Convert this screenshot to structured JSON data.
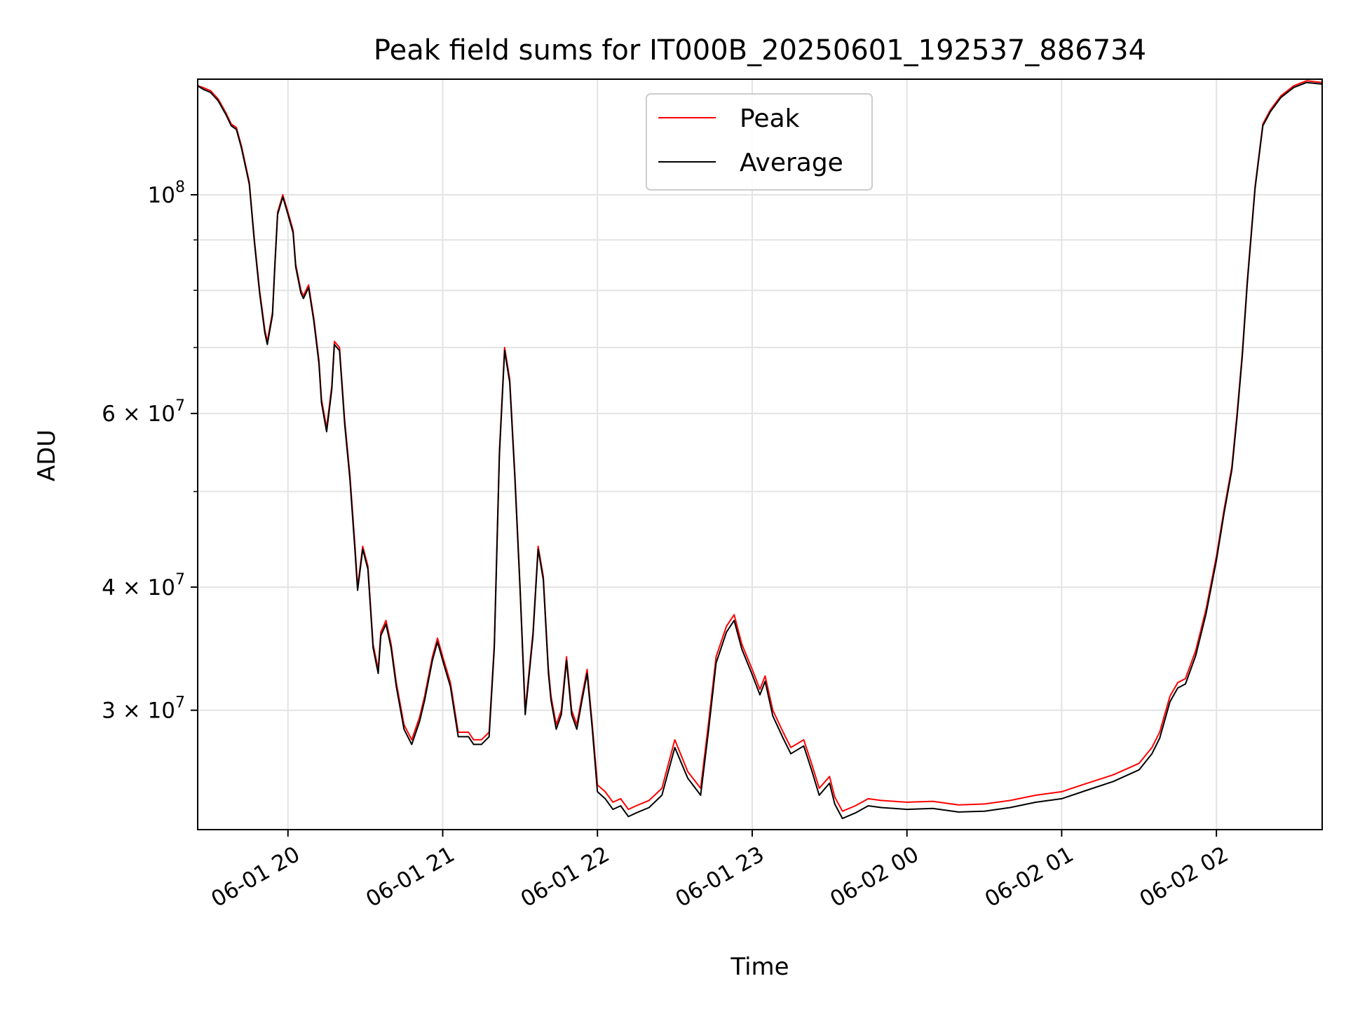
{
  "chart_data": {
    "type": "line",
    "title": "Peak field sums for IT000B_20250601_192537_886734",
    "xlabel": "Time",
    "ylabel": "ADU",
    "yscale": "log",
    "xlim": [
      "2025-06-01 19:25",
      "2025-06-02 02:41"
    ],
    "ylim": [
      22700000,
      131000000
    ],
    "grid": true,
    "legend": "top-center",
    "x_ticks": [
      {
        "value": "2025-06-01 20:00",
        "label": "06-01 20"
      },
      {
        "value": "2025-06-01 21:00",
        "label": "06-01 21"
      },
      {
        "value": "2025-06-01 22:00",
        "label": "06-01 22"
      },
      {
        "value": "2025-06-01 23:00",
        "label": "06-01 23"
      },
      {
        "value": "2025-06-02 00:00",
        "label": "06-02 00"
      },
      {
        "value": "2025-06-02 01:00",
        "label": "06-02 01"
      },
      {
        "value": "2025-06-02 02:00",
        "label": "06-02 02"
      }
    ],
    "y_ticks": [
      {
        "value": 100000000,
        "base": "10",
        "exp": "8"
      },
      {
        "value": 60000000,
        "base": "6 × 10",
        "exp": "7"
      },
      {
        "value": 40000000,
        "base": "4 × 10",
        "exp": "7"
      },
      {
        "value": 30000000,
        "base": "3 × 10",
        "exp": "7"
      }
    ],
    "y_minor_ticks": [
      50000000,
      70000000,
      80000000,
      90000000
    ],
    "x": [
      "2025-06-01 19:25",
      "2025-06-01 19:27",
      "2025-06-01 19:30",
      "2025-06-01 19:33",
      "2025-06-01 19:36",
      "2025-06-01 19:38",
      "2025-06-01 19:40",
      "2025-06-01 19:42",
      "2025-06-01 19:45",
      "2025-06-01 19:47",
      "2025-06-01 19:49",
      "2025-06-01 19:51",
      "2025-06-01 19:52",
      "2025-06-01 19:54",
      "2025-06-01 19:55",
      "2025-06-01 19:56",
      "2025-06-01 19:58",
      "2025-06-01 20:00",
      "2025-06-01 20:02",
      "2025-06-01 20:03",
      "2025-06-01 20:05",
      "2025-06-01 20:06",
      "2025-06-01 20:08",
      "2025-06-01 20:10",
      "2025-06-01 20:12",
      "2025-06-01 20:13",
      "2025-06-01 20:15",
      "2025-06-01 20:17",
      "2025-06-01 20:18",
      "2025-06-01 20:20",
      "2025-06-01 20:22",
      "2025-06-01 20:24",
      "2025-06-01 20:26",
      "2025-06-01 20:27",
      "2025-06-01 20:29",
      "2025-06-01 20:31",
      "2025-06-01 20:33",
      "2025-06-01 20:35",
      "2025-06-01 20:36",
      "2025-06-01 20:38",
      "2025-06-01 20:40",
      "2025-06-01 20:42",
      "2025-06-01 20:45",
      "2025-06-01 20:48",
      "2025-06-01 20:51",
      "2025-06-01 20:53",
      "2025-06-01 20:56",
      "2025-06-01 20:58",
      "2025-06-01 21:00",
      "2025-06-01 21:03",
      "2025-06-01 21:06",
      "2025-06-01 21:08",
      "2025-06-01 21:10",
      "2025-06-01 21:12",
      "2025-06-01 21:15",
      "2025-06-01 21:18",
      "2025-06-01 21:20",
      "2025-06-01 21:22",
      "2025-06-01 21:24",
      "2025-06-01 21:26",
      "2025-06-01 21:28",
      "2025-06-01 21:30",
      "2025-06-01 21:32",
      "2025-06-01 21:35",
      "2025-06-01 21:37",
      "2025-06-01 21:39",
      "2025-06-01 21:41",
      "2025-06-01 21:42",
      "2025-06-01 21:44",
      "2025-06-01 21:46",
      "2025-06-01 21:48",
      "2025-06-01 21:50",
      "2025-06-01 21:52",
      "2025-06-01 21:54",
      "2025-06-01 21:56",
      "2025-06-01 21:58",
      "2025-06-01 22:00",
      "2025-06-01 22:03",
      "2025-06-01 22:06",
      "2025-06-01 22:09",
      "2025-06-01 22:12",
      "2025-06-01 22:15",
      "2025-06-01 22:20",
      "2025-06-01 22:25",
      "2025-06-01 22:30",
      "2025-06-01 22:35",
      "2025-06-01 22:40",
      "2025-06-01 22:43",
      "2025-06-01 22:46",
      "2025-06-01 22:50",
      "2025-06-01 22:53",
      "2025-06-01 22:56",
      "2025-06-01 23:00",
      "2025-06-01 23:03",
      "2025-06-01 23:05",
      "2025-06-01 23:08",
      "2025-06-01 23:12",
      "2025-06-01 23:15",
      "2025-06-01 23:20",
      "2025-06-01 23:23",
      "2025-06-01 23:26",
      "2025-06-01 23:30",
      "2025-06-01 23:32",
      "2025-06-01 23:35",
      "2025-06-01 23:40",
      "2025-06-01 23:45",
      "2025-06-01 23:50",
      "2025-06-02 00:00",
      "2025-06-02 00:10",
      "2025-06-02 00:20",
      "2025-06-02 00:30",
      "2025-06-02 00:40",
      "2025-06-02 00:50",
      "2025-06-02 01:00",
      "2025-06-02 01:10",
      "2025-06-02 01:20",
      "2025-06-02 01:30",
      "2025-06-02 01:35",
      "2025-06-02 01:38",
      "2025-06-02 01:42",
      "2025-06-02 01:45",
      "2025-06-02 01:48",
      "2025-06-02 01:52",
      "2025-06-02 01:56",
      "2025-06-02 02:00",
      "2025-06-02 02:03",
      "2025-06-02 02:06",
      "2025-06-02 02:08",
      "2025-06-02 02:10",
      "2025-06-02 02:12",
      "2025-06-02 02:15",
      "2025-06-02 02:18",
      "2025-06-02 02:21",
      "2025-06-02 02:25",
      "2025-06-02 02:30",
      "2025-06-02 02:35",
      "2025-06-02 02:41"
    ],
    "series": [
      {
        "name": "Peak",
        "color": "#ff0000",
        "values": [
          129000000,
          128500000,
          127500000,
          125000000,
          121000000,
          118000000,
          117000000,
          112000000,
          103000000,
          90000000,
          80000000,
          73000000,
          71000000,
          76000000,
          86000000,
          96000000,
          100000000,
          96000000,
          92000000,
          85000000,
          80000000,
          79000000,
          81000000,
          75000000,
          68000000,
          62000000,
          58000000,
          64000000,
          71000000,
          70000000,
          59000000,
          52000000,
          44000000,
          40000000,
          44000000,
          42000000,
          35000000,
          33000000,
          36000000,
          37000000,
          35000000,
          32000000,
          29000000,
          28000000,
          29500000,
          31000000,
          34000000,
          35500000,
          34000000,
          32000000,
          28500000,
          28500000,
          28500000,
          28000000,
          28000000,
          28500000,
          35000000,
          55000000,
          70000000,
          65000000,
          52000000,
          40000000,
          30000000,
          36000000,
          44000000,
          41000000,
          33000000,
          31000000,
          29000000,
          30000000,
          34000000,
          30000000,
          29000000,
          31000000,
          33000000,
          29000000,
          25200000,
          24800000,
          24200000,
          24400000,
          23800000,
          24000000,
          24300000,
          25000000,
          28000000,
          26000000,
          25000000,
          29000000,
          34000000,
          36500000,
          37500000,
          35000000,
          33000000,
          31500000,
          32500000,
          30000000,
          28500000,
          27500000,
          28000000,
          26500000,
          25000000,
          25700000,
          24500000,
          23700000,
          24000000,
          24400000,
          24300000,
          24200000,
          24250000,
          24050000,
          24100000,
          24300000,
          24600000,
          24800000,
          25300000,
          25800000,
          26500000,
          27500000,
          28500000,
          31000000,
          32000000,
          32300000,
          34500000,
          38000000,
          43000000,
          48000000,
          53000000,
          60000000,
          69000000,
          82000000,
          102000000,
          118000000,
          122000000,
          126000000,
          129000000,
          130500000,
          130000000
        ]
      },
      {
        "name": "Average",
        "color": "#000000",
        "values": [
          129000000,
          128000000,
          127000000,
          124500000,
          120500000,
          117500000,
          116500000,
          111500000,
          102500000,
          89500000,
          79500000,
          72500000,
          70500000,
          75500000,
          85500000,
          95500000,
          99500000,
          95500000,
          91500000,
          84500000,
          79500000,
          78500000,
          80500000,
          74500000,
          67500000,
          61500000,
          57500000,
          63500000,
          70500000,
          69500000,
          58500000,
          51500000,
          43500000,
          39700000,
          43700000,
          41700000,
          34700000,
          32700000,
          35700000,
          36700000,
          34700000,
          31700000,
          28700000,
          27700000,
          29200000,
          30700000,
          33700000,
          35200000,
          33700000,
          31700000,
          28200000,
          28200000,
          28200000,
          27700000,
          27700000,
          28200000,
          34700000,
          54500000,
          69500000,
          64500000,
          51500000,
          39700000,
          29700000,
          35700000,
          43700000,
          40700000,
          32700000,
          30700000,
          28700000,
          29700000,
          33700000,
          29700000,
          28700000,
          30700000,
          32700000,
          28700000,
          24800000,
          24400000,
          23800000,
          24000000,
          23400000,
          23600000,
          23900000,
          24600000,
          27500000,
          25600000,
          24600000,
          28500000,
          33500000,
          36000000,
          37000000,
          34600000,
          32600000,
          31100000,
          32100000,
          29600000,
          28100000,
          27100000,
          27600000,
          26100000,
          24600000,
          25300000,
          24100000,
          23300000,
          23600000,
          24000000,
          23900000,
          23800000,
          23850000,
          23650000,
          23700000,
          23900000,
          24200000,
          24400000,
          24900000,
          25400000,
          26100000,
          27100000,
          28100000,
          30600000,
          31600000,
          31900000,
          34100000,
          37600000,
          42600000,
          47600000,
          52600000,
          59500000,
          68500000,
          81500000,
          101500000,
          117500000,
          121500000,
          125500000,
          128500000,
          130000000,
          129500000
        ]
      }
    ]
  }
}
